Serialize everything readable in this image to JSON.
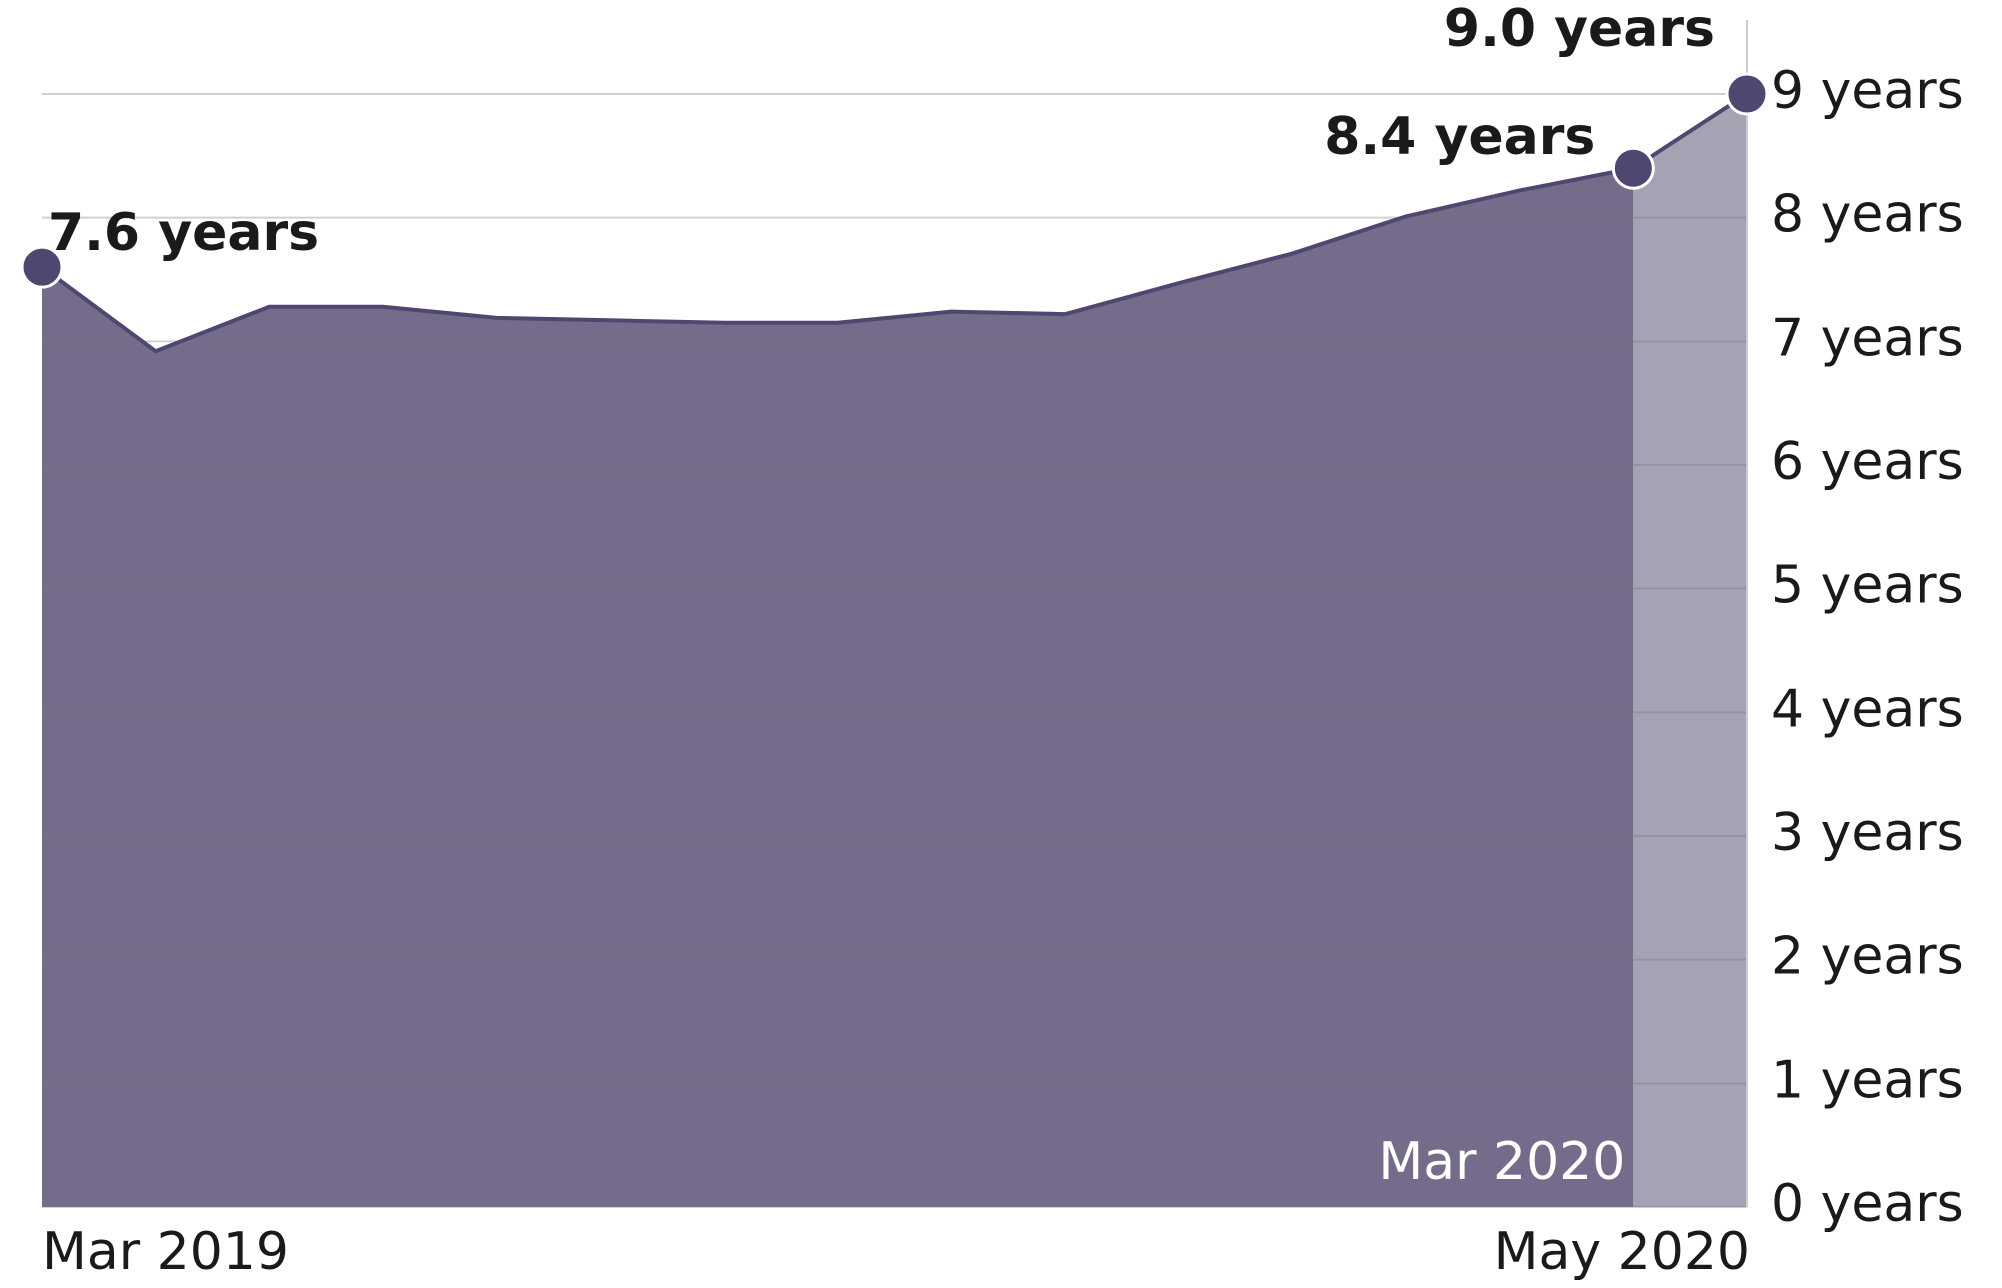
{
  "chart_data": {
    "type": "area",
    "categories": [
      "Mar 2019",
      null,
      null,
      null,
      null,
      null,
      null,
      null,
      null,
      null,
      null,
      null,
      null,
      null,
      null,
      "May 2020"
    ],
    "values": [
      7.6,
      6.92,
      7.28,
      7.28,
      7.19,
      7.17,
      7.15,
      7.15,
      7.24,
      7.22,
      7.47,
      7.71,
      8.01,
      8.22,
      8.4,
      9.0
    ],
    "value_labels": [
      "7.6 years",
      null,
      null,
      null,
      null,
      null,
      null,
      null,
      null,
      null,
      null,
      null,
      null,
      null,
      "8.4 years",
      "9.0 years"
    ],
    "color": "#746c8a",
    "highlight_color": "#a6a2b3",
    "line_color": "#4f4770",
    "annotations": [
      {
        "text": "Mar 2020",
        "index": 14
      }
    ],
    "ylim": [
      0,
      9
    ],
    "yticks": [
      {
        "value": 0,
        "label": "0 years"
      },
      {
        "value": 1,
        "label": "1 years"
      },
      {
        "value": 2,
        "label": "2 years"
      },
      {
        "value": 3,
        "label": "3 years"
      },
      {
        "value": 4,
        "label": "4 years"
      },
      {
        "value": 5,
        "label": "5 years"
      },
      {
        "value": 6,
        "label": "6 years"
      },
      {
        "value": 7,
        "label": "7 years"
      },
      {
        "value": 8,
        "label": "8 years"
      },
      {
        "value": 9,
        "label": "9 years"
      }
    ],
    "grid": true
  }
}
